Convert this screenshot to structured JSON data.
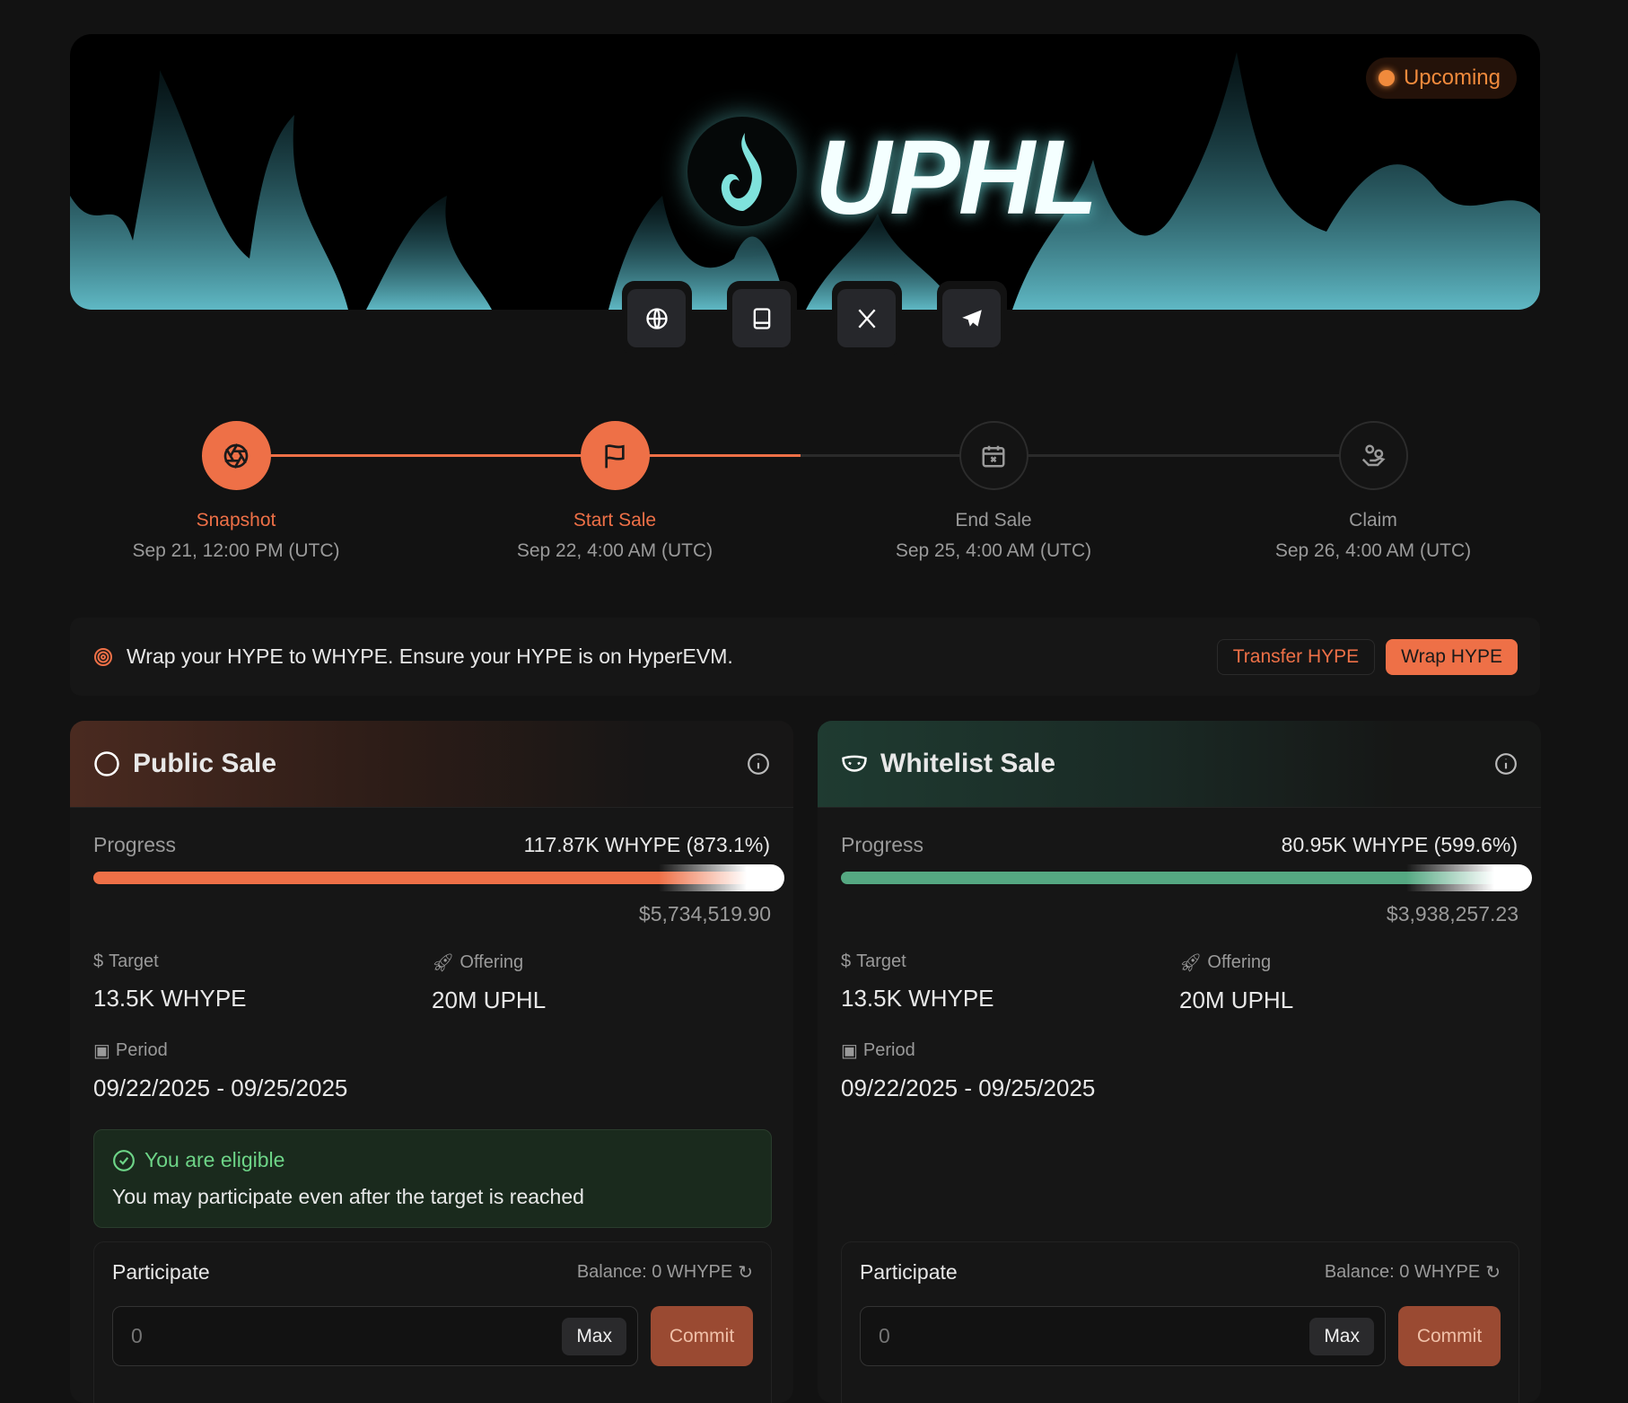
{
  "banner": {
    "logo_text": "UPHL",
    "status": "Upcoming",
    "status_color": "#f08a3c"
  },
  "socials": [
    {
      "icon": "globe-icon"
    },
    {
      "icon": "book-icon"
    },
    {
      "icon": "x-icon"
    },
    {
      "icon": "telegram-icon"
    }
  ],
  "timeline": {
    "progress_color": "#ee7047",
    "steps": [
      {
        "label": "Snapshot",
        "date": "Sep 21, 12:00 PM (UTC)",
        "icon": "aperture-icon",
        "done": true
      },
      {
        "label": "Start Sale",
        "date": "Sep 22, 4:00 AM (UTC)",
        "icon": "flag-icon",
        "done": true
      },
      {
        "label": "End Sale",
        "date": "Sep 25, 4:00 AM (UTC)",
        "icon": "calendar-x-icon",
        "done": false
      },
      {
        "label": "Claim",
        "date": "Sep 26, 4:00 AM (UTC)",
        "icon": "hand-coins-icon",
        "done": false
      }
    ]
  },
  "wrap": {
    "text": "Wrap your HYPE to WHYPE. Ensure your HYPE is on HyperEVM.",
    "transfer_label": "Transfer HYPE",
    "wrap_label": "Wrap HYPE"
  },
  "public": {
    "title": "Public Sale",
    "progress_label": "Progress",
    "progress_value": "117.87K WHYPE (873.1%)",
    "progress_percent": 873.1,
    "usd": "$5,734,519.90",
    "bar_color": "#ee7047",
    "target_label": "Target",
    "target": "13.5K WHYPE",
    "offering_label": "Offering",
    "offering": "20M UPHL",
    "period_label": "Period",
    "period": "09/22/2025 - 09/25/2025",
    "eligible_title": "You are eligible",
    "eligible_text": "You may participate even after the target is reached",
    "participate": "Participate",
    "balance": "Balance: 0 WHYPE",
    "input_placeholder": "0",
    "max": "Max",
    "commit": "Commit"
  },
  "whitelist": {
    "title": "Whitelist Sale",
    "progress_label": "Progress",
    "progress_value": "80.95K WHYPE (599.6%)",
    "progress_percent": 599.6,
    "usd": "$3,938,257.23",
    "bar_color": "#55a882",
    "target_label": "Target",
    "target": "13.5K WHYPE",
    "offering_label": "Offering",
    "offering": "20M UPHL",
    "period_label": "Period",
    "period": "09/22/2025 - 09/25/2025",
    "participate": "Participate",
    "balance": "Balance: 0 WHYPE",
    "input_placeholder": "0",
    "max": "Max",
    "commit": "Commit"
  }
}
